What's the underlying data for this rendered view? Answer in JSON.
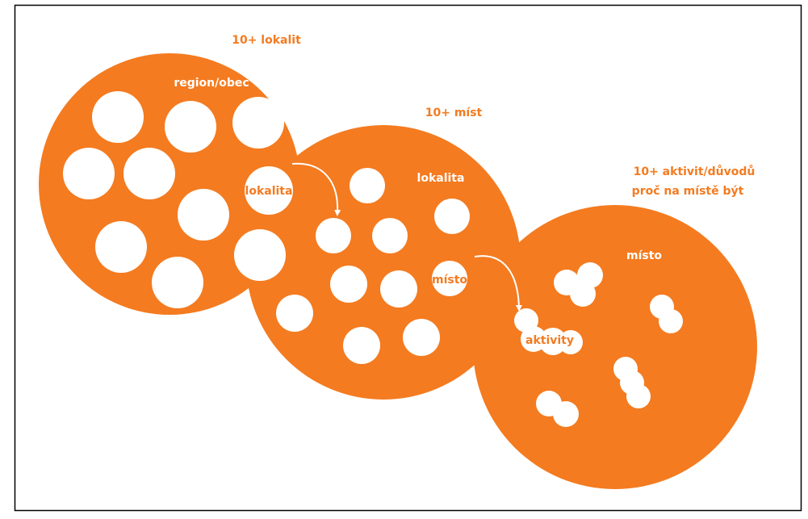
{
  "levels": [
    {
      "count": [
        "10+ lokalit"
      ],
      "label": "region/obec",
      "item": "lokalita"
    },
    {
      "count": [
        "10+ míst"
      ],
      "label": "lokalita",
      "item": "místo"
    },
    {
      "count": [
        "10+ aktivit/důvodů",
        "proč na místě být"
      ],
      "label": "místo",
      "item": "aktivity"
    }
  ]
}
